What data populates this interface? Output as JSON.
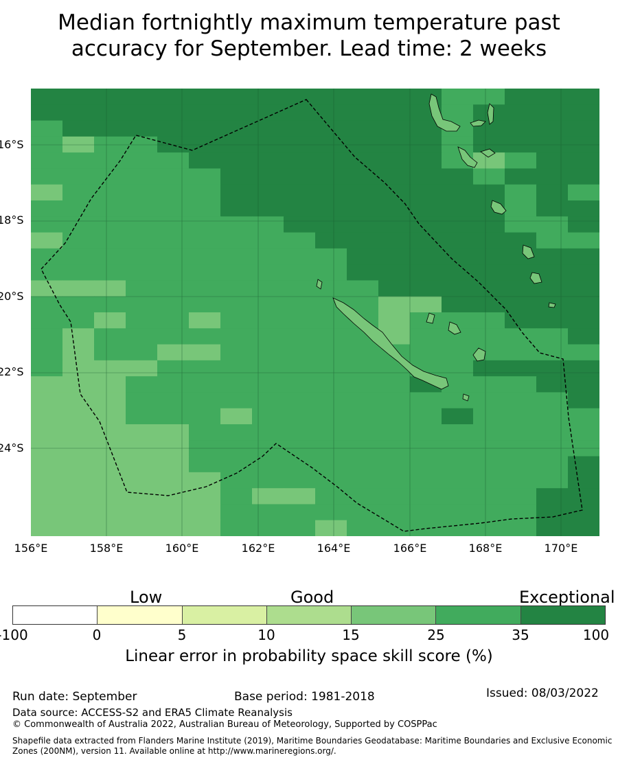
{
  "title": {
    "line1": "Median fortnightly maximum temperature past",
    "line2": "accuracy for September. Lead time: 2 weeks"
  },
  "map": {
    "latitude_labels": [
      "16°S",
      "18°S",
      "20°S",
      "22°S",
      "24°S"
    ],
    "longitude_labels": [
      "156°E",
      "158°E",
      "160°E",
      "162°E",
      "164°E",
      "166°E",
      "168°E",
      "170°E"
    ],
    "boundary_style": "dashed black line (maximum boundaries / EEZ)",
    "cells": [
      "000000000000022000",
      "011111111111121000",
      "211111111111121000",
      "232211111111121000",
      "222221111111123200",
      "222222111111112100",
      "322222111111111212",
      "222222111111111211",
      "222222221111111221",
      "322222222111111122",
      "222222222211111111",
      "222222222211111111",
      "333222222221111111",
      "222222222223311111",
      "223223222223222111",
      "232222222223222221",
      "232233222222222222",
      "233322222222221111",
      "333222222222122211",
      "333222222222222221",
      "333222322222212222",
      "333332222222222222",
      "333332222222222222",
      "333332222222222221",
      "333333222222222221",
      "333333233222222211",
      "333333222222222211",
      "333333222322222211"
    ]
  },
  "colorbar": {
    "headings": [
      "Low",
      "Good",
      "Exceptional"
    ],
    "ticks": [
      "-100",
      "0",
      "5",
      "10",
      "15",
      "25",
      "35",
      "100"
    ],
    "colors": [
      "#ffffff",
      "#ffffcc",
      "#d9f0a3",
      "#addd8e",
      "#78c679",
      "#41ab5d",
      "#238443"
    ],
    "label": "Linear error in probability space skill score (%)"
  },
  "footer": {
    "run_date": "Run date: September",
    "base_period": "Base period: 1981-2018",
    "issued": "Issued: 08/03/2022",
    "data_source": "Data source: ACCESS-S2 and ERA5 Climate Reanalysis",
    "copyright": "© Commonwealth of Australia 2022, Australian Bureau of Meteorology, Supported by COSPPac",
    "shapefile": "Shapefile data extracted from Flanders Marine Institute (2019), Maritime Boundaries Geodatabase: Maritime Boundaries and Exclusive Economic Zones (200NM), version 11. Available online at http://www.marineregions.org/."
  }
}
